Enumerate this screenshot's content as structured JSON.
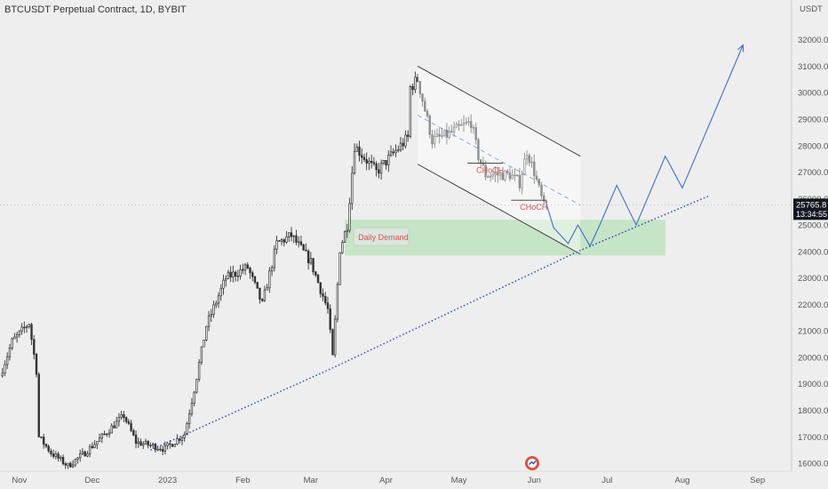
{
  "header": {
    "title": "BTCUSDT Perpetual Contract, 1D, BYBIT"
  },
  "price_axis": {
    "unit": "USDT"
  },
  "last_price": {
    "value": "25765.8",
    "countdown": "13:34:55",
    "color": "#131722"
  },
  "colors": {
    "background": "#eeeeee",
    "candle": "#333333",
    "channel": "#333333",
    "projection": "#3d6fcc",
    "trendline": "#2b4ea8",
    "demand_fill": "#b8e0b8",
    "annotation": "#d9534f"
  },
  "chart_data": {
    "type": "candlestick",
    "title": "BTCUSDT Perpetual Contract, 1D, BYBIT",
    "y_unit": "USDT",
    "ylim": [
      15700,
      33500
    ],
    "xlim": [
      "2022-10-24",
      "2023-09-15"
    ],
    "y_ticks": [
      16000,
      17000,
      18000,
      19000,
      20000,
      21000,
      22000,
      23000,
      24000,
      25000,
      26000,
      27000,
      28000,
      29000,
      30000,
      31000,
      32000
    ],
    "y_tick_labels": [
      "16000.0",
      "17000.0",
      "18000.0",
      "19000.0",
      "20000.0",
      "21000.0",
      "22000.0",
      "23000.0",
      "24000.0",
      "25000.0",
      "26000.0",
      "27000.0",
      "28000.0",
      "29000.0",
      "30000.0",
      "31000.0",
      "32000.0"
    ],
    "x_ticks": [
      {
        "date": "2022-11-01",
        "label": "Nov"
      },
      {
        "date": "2022-12-01",
        "label": "Dec"
      },
      {
        "date": "2023-01-01",
        "label": "2023"
      },
      {
        "date": "2023-02-01",
        "label": "Feb"
      },
      {
        "date": "2023-03-01",
        "label": "Mar"
      },
      {
        "date": "2023-04-01",
        "label": "Apr"
      },
      {
        "date": "2023-05-01",
        "label": "May"
      },
      {
        "date": "2023-06-01",
        "label": "Jun"
      },
      {
        "date": "2023-07-01",
        "label": "Jul"
      },
      {
        "date": "2023-08-01",
        "label": "Aug"
      },
      {
        "date": "2023-09-01",
        "label": "Sep"
      }
    ],
    "close_path": [
      [
        "2022-10-24",
        19300
      ],
      [
        "2022-10-29",
        20600
      ],
      [
        "2022-11-05",
        21300
      ],
      [
        "2022-11-08",
        19500
      ],
      [
        "2022-11-09",
        17000
      ],
      [
        "2022-11-14",
        16400
      ],
      [
        "2022-11-21",
        15900
      ],
      [
        "2022-11-28",
        16400
      ],
      [
        "2022-12-05",
        17000
      ],
      [
        "2022-12-14",
        17800
      ],
      [
        "2022-12-19",
        16800
      ],
      [
        "2022-12-31",
        16550
      ],
      [
        "2023-01-08",
        17100
      ],
      [
        "2023-01-12",
        18800
      ],
      [
        "2023-01-17",
        21200
      ],
      [
        "2023-01-25",
        23000
      ],
      [
        "2023-02-03",
        23400
      ],
      [
        "2023-02-09",
        22000
      ],
      [
        "2023-02-15",
        24300
      ],
      [
        "2023-02-21",
        24600
      ],
      [
        "2023-03-01",
        23600
      ],
      [
        "2023-03-08",
        21800
      ],
      [
        "2023-03-10",
        20000
      ],
      [
        "2023-03-13",
        24100
      ],
      [
        "2023-03-16",
        25000
      ],
      [
        "2023-03-19",
        28000
      ],
      [
        "2023-03-28",
        27000
      ],
      [
        "2023-04-10",
        28300
      ],
      [
        "2023-04-11",
        30200
      ],
      [
        "2023-04-14",
        30500
      ],
      [
        "2023-04-20",
        28200
      ],
      [
        "2023-04-26",
        28400
      ],
      [
        "2023-05-06",
        28900
      ],
      [
        "2023-05-09",
        27600
      ],
      [
        "2023-05-12",
        26900
      ],
      [
        "2023-05-22",
        26900
      ],
      [
        "2023-05-26",
        26600
      ],
      [
        "2023-05-29",
        27800
      ],
      [
        "2023-06-01",
        27000
      ],
      [
        "2023-06-05",
        25700
      ],
      [
        "2023-06-06",
        25765.8
      ]
    ],
    "annotations": [
      {
        "type": "label",
        "text": "CHoCH",
        "date": "2023-05-14",
        "price": 27000
      },
      {
        "type": "label",
        "text": "CHoCH",
        "date": "2023-06-01",
        "price": 25600
      },
      {
        "type": "zone",
        "text": "Daily Demand",
        "start": "2023-03-15",
        "end": "2023-07-25",
        "top": 25200,
        "bottom": 23850
      },
      {
        "type": "descending_channel",
        "upper": [
          [
            "2023-04-14",
            31000
          ],
          [
            "2023-06-20",
            27600
          ]
        ],
        "lower": [
          [
            "2023-04-14",
            27300
          ],
          [
            "2023-06-20",
            23900
          ]
        ]
      },
      {
        "type": "trendline",
        "points": [
          [
            "2022-12-25",
            16500
          ],
          [
            "2023-03-10",
            19600
          ],
          [
            "2023-06-19",
            24000
          ],
          [
            "2023-08-12",
            26100
          ]
        ]
      },
      {
        "type": "projection",
        "points": [
          [
            "2023-06-06",
            25800
          ],
          [
            "2023-06-09",
            24900
          ],
          [
            "2023-06-15",
            24300
          ],
          [
            "2023-06-19",
            25000
          ],
          [
            "2023-06-24",
            24200
          ],
          [
            "2023-06-28",
            25000
          ],
          [
            "2023-07-05",
            26500
          ],
          [
            "2023-07-13",
            25000
          ],
          [
            "2023-07-25",
            27600
          ],
          [
            "2023-08-01",
            26400
          ],
          [
            "2023-08-26",
            31800
          ]
        ]
      }
    ]
  }
}
